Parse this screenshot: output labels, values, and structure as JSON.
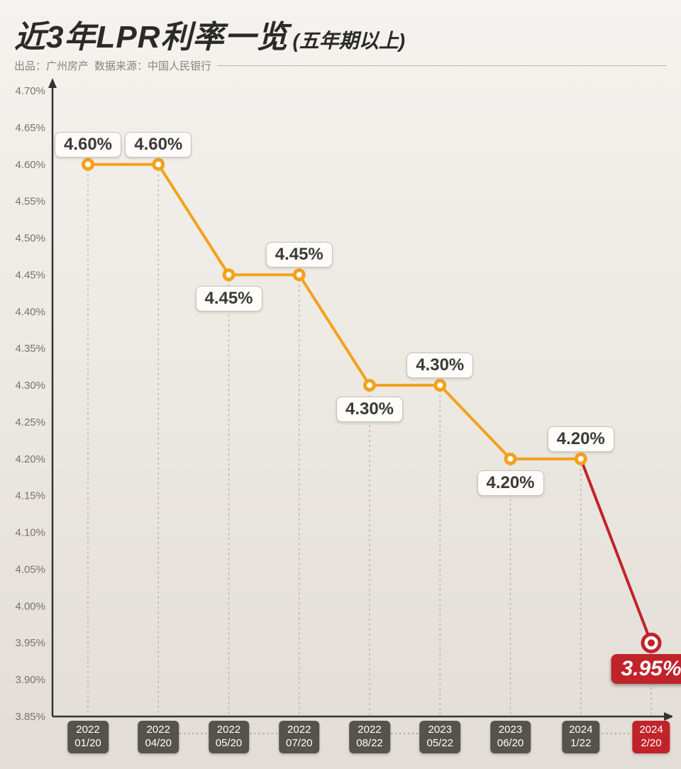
{
  "header": {
    "title_main": "近3年LPR利率一览",
    "title_sub": "(五年期以上)",
    "source_prefix": "出品：",
    "source_publisher": "广州房产",
    "source_dataprefix": "数据来源：",
    "source_datasrc": "中国人民银行"
  },
  "chart": {
    "type": "line-step",
    "ylim": [
      3.85,
      4.7
    ],
    "ytick_step": 0.05,
    "yticks": [
      "4.70%",
      "4.65%",
      "4.60%",
      "4.55%",
      "4.50%",
      "4.45%",
      "4.40%",
      "4.35%",
      "4.30%",
      "4.25%",
      "4.20%",
      "4.15%",
      "4.10%",
      "4.05%",
      "4.00%",
      "3.95%",
      "3.90%",
      "3.85%"
    ],
    "line_color": "#f3a21a",
    "highlight_color": "#c0232a",
    "marker_fill_inner": "#ffffff",
    "background": "#f2eee7",
    "grid_color": "#b3aca1",
    "line_width": 4,
    "points": [
      {
        "date_line1": "2022",
        "date_line2": "01/20",
        "value": 4.6,
        "label": "4.60%",
        "label_pos": "above"
      },
      {
        "date_line1": "2022",
        "date_line2": "04/20",
        "value": 4.6,
        "label": "4.60%",
        "label_pos": "above"
      },
      {
        "date_line1": "2022",
        "date_line2": "05/20",
        "value": 4.45,
        "label": "4.45%",
        "label_pos": "below"
      },
      {
        "date_line1": "2022",
        "date_line2": "07/20",
        "value": 4.45,
        "label": "4.45%",
        "label_pos": "above"
      },
      {
        "date_line1": "2022",
        "date_line2": "08/22",
        "value": 4.3,
        "label": "4.30%",
        "label_pos": "below"
      },
      {
        "date_line1": "2023",
        "date_line2": "05/22",
        "value": 4.3,
        "label": "4.30%",
        "label_pos": "above"
      },
      {
        "date_line1": "2023",
        "date_line2": "06/20",
        "value": 4.2,
        "label": "4.20%",
        "label_pos": "below"
      },
      {
        "date_line1": "2024",
        "date_line2": "1/22",
        "value": 4.2,
        "label": "4.20%",
        "label_pos": "above"
      },
      {
        "date_line1": "2024",
        "date_line2": "2/20",
        "value": 3.95,
        "label": "3.95%",
        "label_pos": "below",
        "highlight": true
      }
    ],
    "xgaps": [
      1,
      2,
      4,
      7
    ]
  }
}
